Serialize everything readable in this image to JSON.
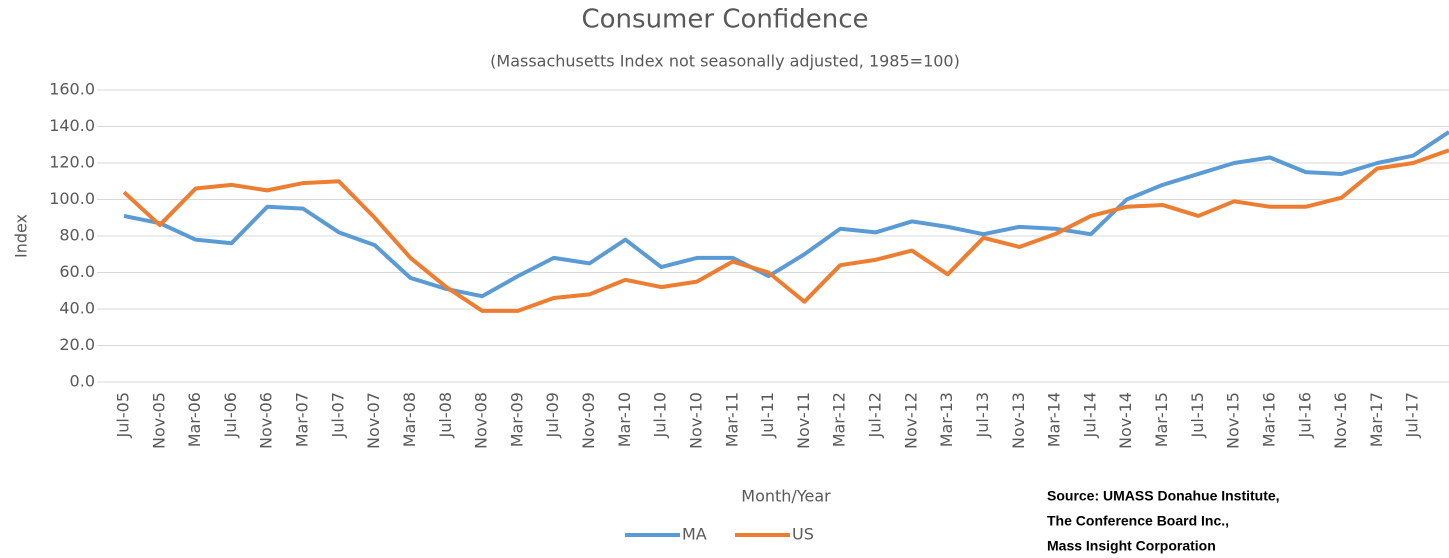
{
  "chart_data": {
    "type": "line",
    "title": "Consumer Confidence",
    "subtitle": "(Massachusetts Index not seasonally adjusted, 1985=100)",
    "x_label": "Month/Year",
    "y_label": "Index",
    "source": [
      "Source:  UMASS Donahue Institute,",
      "The  Conference Board Inc.,",
      "Mass Insight Corporation"
    ],
    "categories": [
      "Jul-05",
      "Nov-05",
      "Mar-06",
      "Jul-06",
      "Nov-06",
      "Mar-07",
      "Jul-07",
      "Nov-07",
      "Mar-08",
      "Jul-08",
      "Nov-08",
      "Mar-09",
      "Jul-09",
      "Nov-09",
      "Mar-10",
      "Jul-10",
      "Nov-10",
      "Mar-11",
      "Jul-11",
      "Nov-11",
      "Mar-12",
      "Jul-12",
      "Nov-12",
      "Mar-13",
      "Jul-13",
      "Nov-13",
      "Mar-14",
      "Jul-14",
      "Nov-14",
      "Mar-15",
      "Jul-15",
      "Nov-15",
      "Mar-16",
      "Jul-16",
      "Nov-16",
      "Mar-17",
      "Jul-17",
      null
    ],
    "series": [
      {
        "name": "MA",
        "color": "#5b9bd5",
        "values": [
          91,
          87,
          78,
          76,
          96,
          95,
          82,
          75,
          57,
          51,
          47,
          58,
          68,
          65,
          78,
          63,
          68,
          68,
          58,
          70,
          84,
          82,
          88,
          85,
          81,
          85,
          84,
          81,
          100,
          108,
          114,
          120,
          123,
          115,
          114,
          120,
          124,
          137
        ]
      },
      {
        "name": "US",
        "color": "#ed7d31",
        "values": [
          104,
          86,
          106,
          108,
          105,
          109,
          110,
          90,
          68,
          52,
          39,
          39,
          46,
          48,
          56,
          52,
          55,
          66,
          60,
          44,
          64,
          67,
          72,
          59,
          79,
          74,
          81,
          91,
          96,
          97,
          91,
          99,
          96,
          96,
          101,
          117,
          120,
          127
        ]
      }
    ],
    "ylim": [
      0,
      160
    ],
    "yticks": [
      {
        "value": 0,
        "label": "0.0"
      },
      {
        "value": 20,
        "label": "20.0"
      },
      {
        "value": 40,
        "label": "40.0"
      },
      {
        "value": 60,
        "label": "60.0"
      },
      {
        "value": 80,
        "label": "80.0"
      },
      {
        "value": 100,
        "label": "100.0"
      },
      {
        "value": 120,
        "label": "120.0"
      },
      {
        "value": 140,
        "label": "140.0"
      },
      {
        "value": 160,
        "label": "160.0"
      }
    ],
    "grid": true,
    "legend": "bottom"
  }
}
